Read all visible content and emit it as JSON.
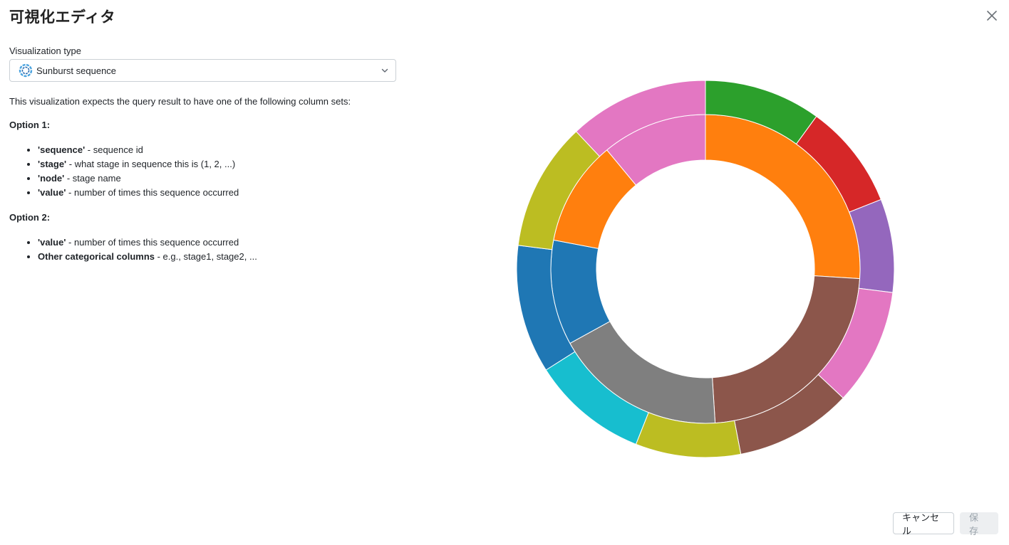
{
  "dialog": {
    "title": "可視化エディタ"
  },
  "editor": {
    "type_label": "Visualization type",
    "type_value": "Sunburst sequence",
    "description": "This visualization expects the query result to have one of the following column sets:",
    "option1": {
      "heading": "Option 1:",
      "items": [
        {
          "key": "'sequence'",
          "desc": " - sequence id"
        },
        {
          "key": "'stage'",
          "desc": " - what stage in sequence this is (1, 2, ...)"
        },
        {
          "key": "'node'",
          "desc": " - stage name"
        },
        {
          "key": "'value'",
          "desc": " - number of times this sequence occurred"
        }
      ]
    },
    "option2": {
      "heading": "Option 2:",
      "items": [
        {
          "key": "'value'",
          "desc": " - number of times this sequence occurred"
        },
        {
          "key": "Other categorical columns",
          "desc": " - e.g., stage1, stage2, ..."
        }
      ]
    }
  },
  "footer": {
    "cancel_label": "キャンセル",
    "save_label": "保 存"
  },
  "icons": {
    "close": "close-icon",
    "type": "sunburst-icon",
    "chevron": "chevron-down-icon"
  },
  "chart_data": {
    "type": "sunburst",
    "rings": [
      {
        "level": 1,
        "segments": [
          {
            "value": 26,
            "color": "#ff7f0e"
          },
          {
            "value": 23,
            "color": "#8c564b"
          },
          {
            "value": 18,
            "color": "#7f7f7f"
          },
          {
            "value": 11,
            "color": "#1f77b4"
          },
          {
            "value": 11,
            "color": "#ff7f0e"
          },
          {
            "value": 11,
            "color": "#e377c2"
          }
        ]
      },
      {
        "level": 2,
        "segments": [
          {
            "value": 10,
            "color": "#2ca02c"
          },
          {
            "value": 9,
            "color": "#d62728"
          },
          {
            "value": 8,
            "color": "#9467bd"
          },
          {
            "value": 10,
            "color": "#e377c2"
          },
          {
            "value": 10,
            "color": "#8c564b"
          },
          {
            "value": 9,
            "color": "#bcbd22"
          },
          {
            "value": 10,
            "color": "#17becf"
          },
          {
            "value": 11,
            "color": "#1f77b4"
          },
          {
            "value": 11,
            "color": "#bcbd22"
          },
          {
            "value": 12,
            "color": "#e377c2"
          }
        ]
      }
    ]
  }
}
